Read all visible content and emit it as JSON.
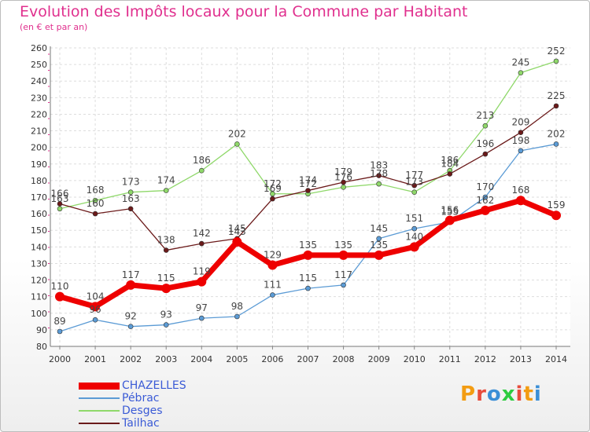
{
  "title": "Evolution des Impôts locaux pour la Commune par Habitant",
  "subtitle": "(en € et par an)",
  "logo": {
    "text": "Proxiti",
    "colors": [
      "#f39c12",
      "#e74c3c",
      "#3b8fd6",
      "#2ecc40",
      "#e74c3c",
      "#f39c12",
      "#3b8fd6"
    ]
  },
  "chart_data": {
    "type": "line",
    "title": "Evolution des Impôts locaux pour la Commune par Habitant",
    "subtitle": "(en € et par an)",
    "xlabel": "",
    "ylabel": "",
    "x": [
      "2000",
      "2001",
      "2002",
      "2003",
      "2004",
      "2005",
      "2006",
      "2007",
      "2008",
      "2009",
      "2010",
      "2011",
      "2012",
      "2013",
      "2014"
    ],
    "ylim": [
      80,
      260
    ],
    "yticks": [
      80,
      90,
      100,
      110,
      120,
      130,
      140,
      150,
      160,
      170,
      180,
      190,
      200,
      210,
      220,
      230,
      240,
      250,
      260
    ],
    "grid": true,
    "legend_position": "bottom-left",
    "series": [
      {
        "name": "CHAZELLES",
        "color": "#ee0000",
        "emphasis": true,
        "values": [
          110,
          104,
          117,
          115,
          119,
          143,
          129,
          135,
          135,
          135,
          140,
          156,
          162,
          168,
          159
        ]
      },
      {
        "name": "Pébrac",
        "color": "#5b9bd5",
        "values": [
          89,
          96,
          92,
          93,
          97,
          98,
          111,
          115,
          117,
          145,
          151,
          155,
          170,
          198,
          202
        ]
      },
      {
        "name": "Desges",
        "color": "#8fd86a",
        "values": [
          163,
          168,
          173,
          174,
          186,
          202,
          172,
          172,
          176,
          178,
          173,
          186,
          213,
          245,
          252
        ]
      },
      {
        "name": "Tailhac",
        "color": "#6b1a1a",
        "values": [
          166,
          160,
          163,
          138,
          142,
          145,
          169,
          174,
          179,
          183,
          177,
          184,
          196,
          209,
          225
        ]
      }
    ]
  }
}
